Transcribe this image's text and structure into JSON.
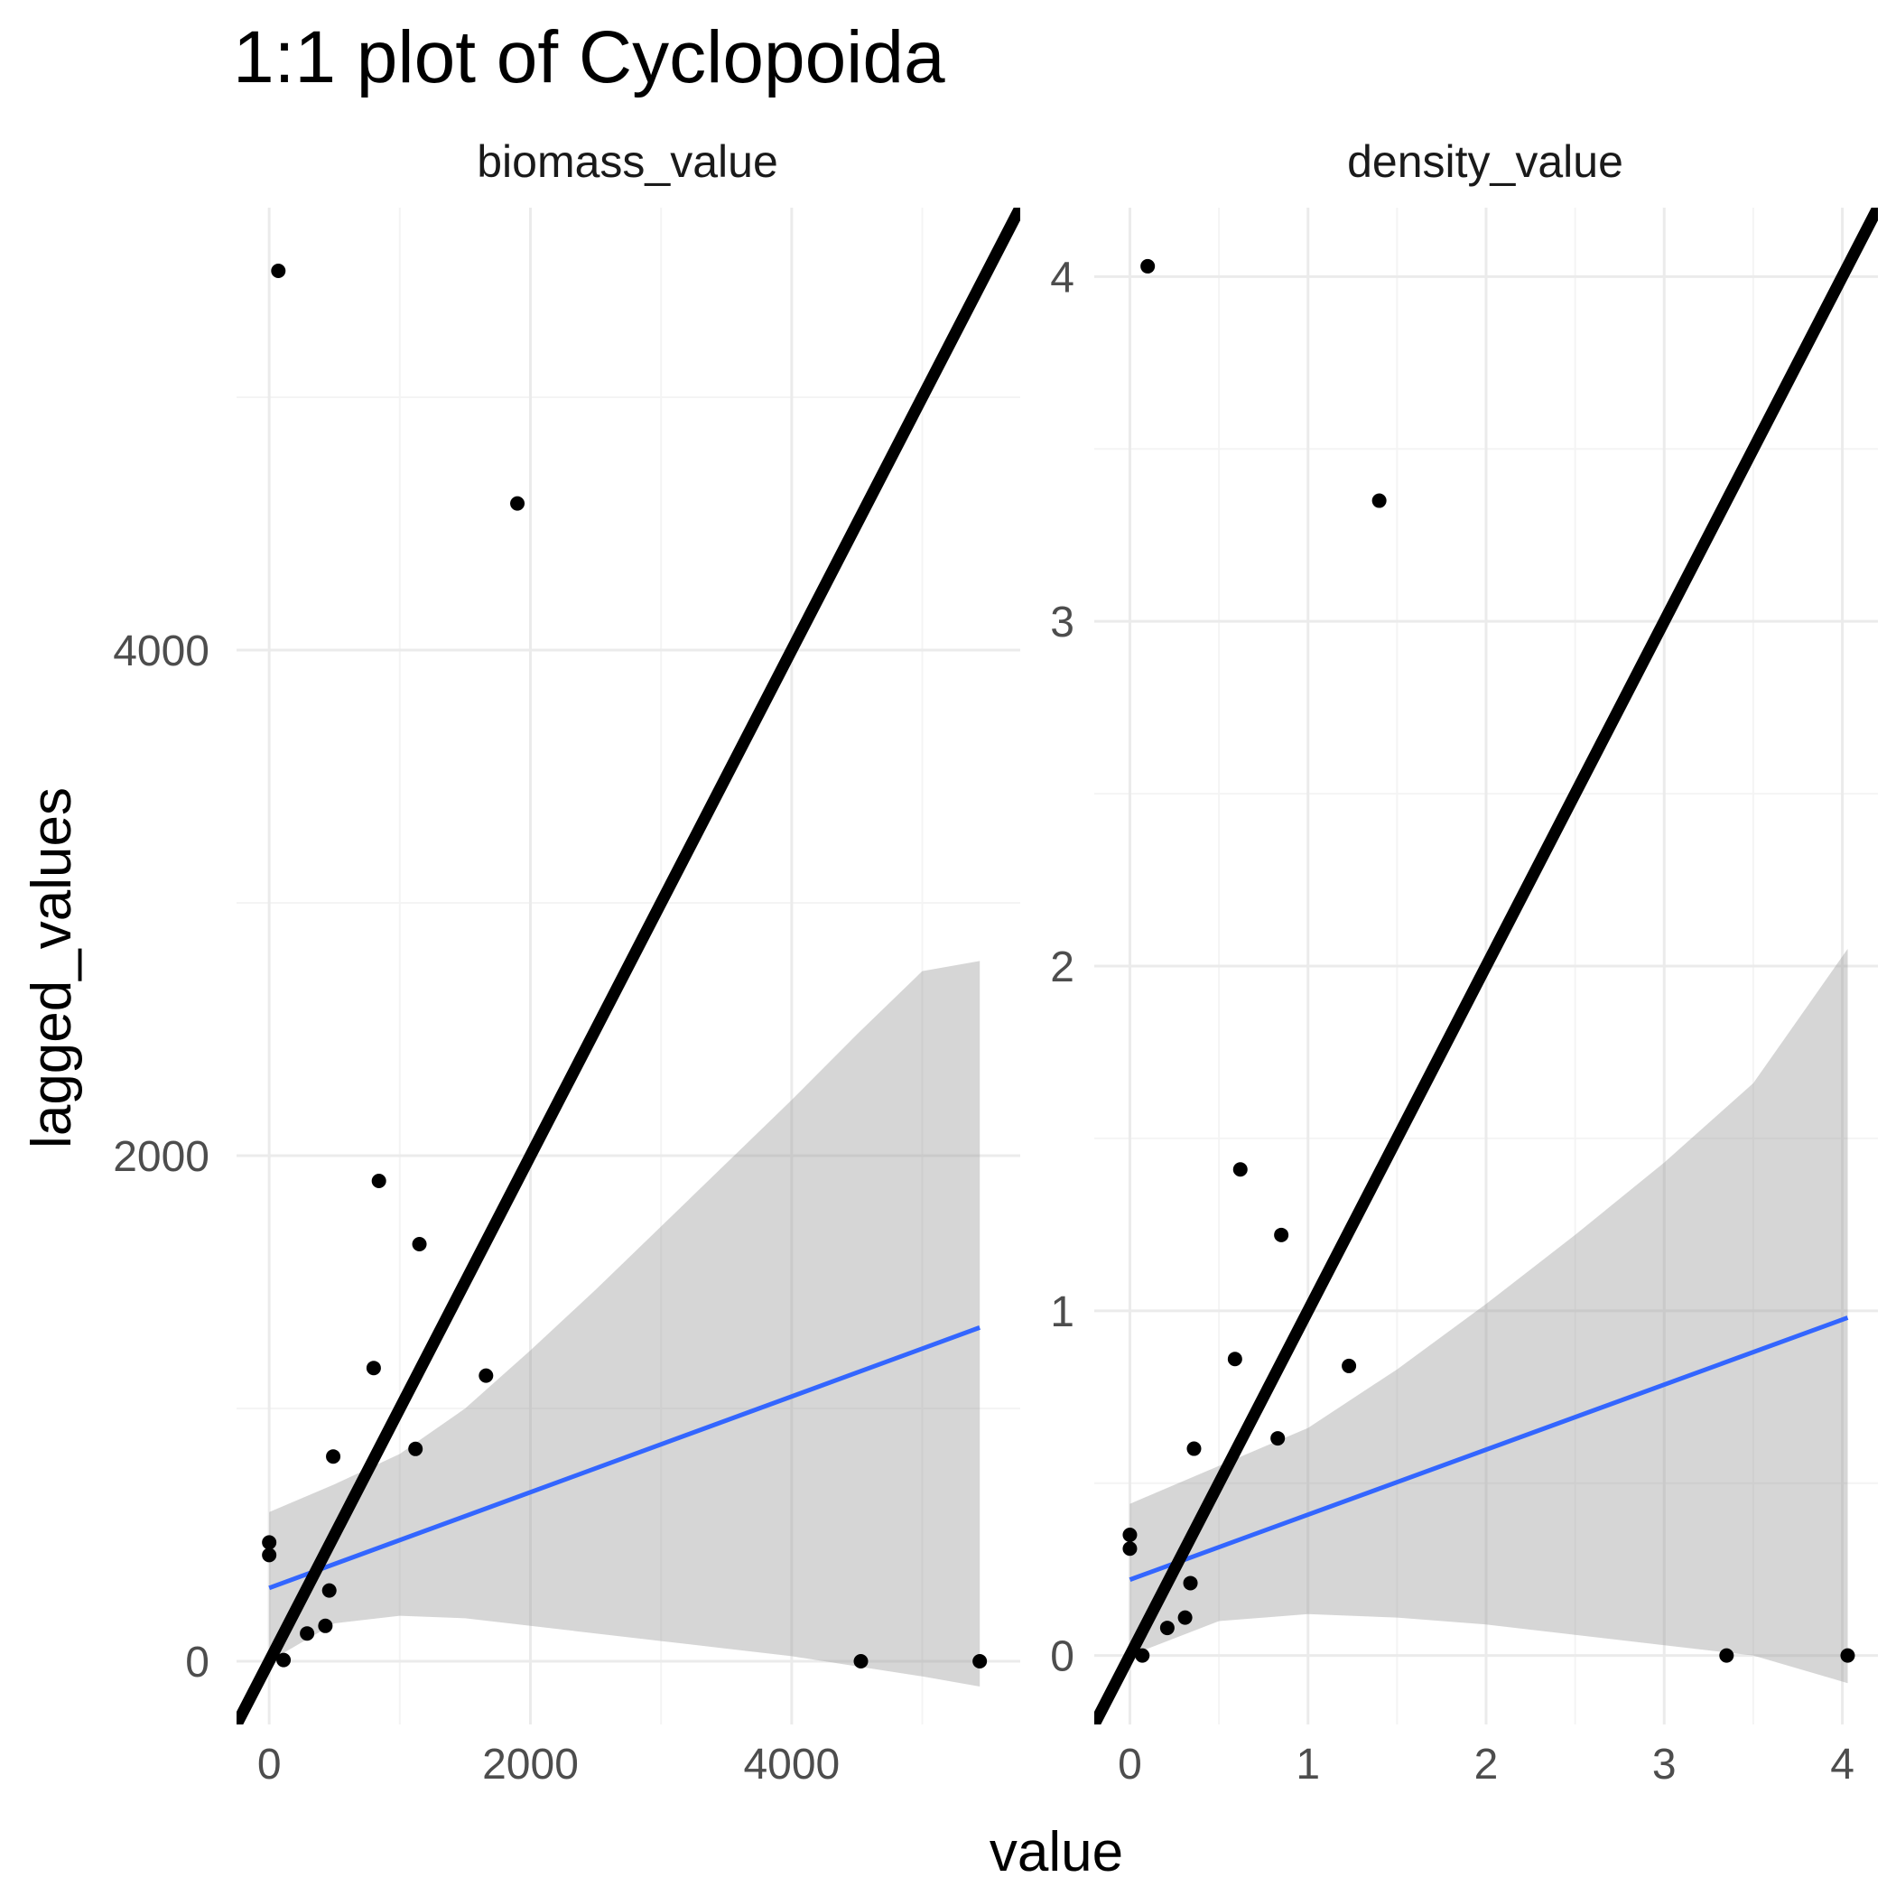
{
  "chart_data": {
    "type": "scatter",
    "title": "1:1 plot of Cyclopoida",
    "xlabel": "value",
    "ylabel": "lagged_values",
    "grid": true,
    "colors": {
      "points": "#000000",
      "identity_line": "#000000",
      "fit_line": "#3366ff",
      "ribbon": "#999999",
      "grid_major": "#ebebeb",
      "grid_minor": "#f4f4f4"
    },
    "panels": [
      {
        "strip": "biomass_value",
        "xlim": [
          -250,
          5750
        ],
        "ylim": [
          -250,
          5750
        ],
        "x_ticks": [
          0,
          2000,
          4000
        ],
        "y_ticks": [
          0,
          2000,
          4000
        ],
        "x_tick_labels": [
          "0",
          "2000",
          "4000"
        ],
        "y_tick_labels": [
          "0",
          "2000",
          "4000"
        ],
        "points": [
          {
            "x": 70,
            "y": 5500
          },
          {
            "x": 1900,
            "y": 4580
          },
          {
            "x": 840,
            "y": 1900
          },
          {
            "x": 1150,
            "y": 1650
          },
          {
            "x": 800,
            "y": 1160
          },
          {
            "x": 1660,
            "y": 1130
          },
          {
            "x": 490,
            "y": 810
          },
          {
            "x": 1120,
            "y": 840
          },
          {
            "x": 0,
            "y": 470
          },
          {
            "x": 0,
            "y": 420
          },
          {
            "x": 460,
            "y": 280
          },
          {
            "x": 430,
            "y": 140
          },
          {
            "x": 290,
            "y": 110
          },
          {
            "x": 110,
            "y": 5
          },
          {
            "x": 4530,
            "y": 0
          },
          {
            "x": 5440,
            "y": 0
          }
        ],
        "fit": {
          "x0": 0,
          "y0": 290,
          "x1": 5440,
          "y1": 1320
        },
        "ribbon": [
          {
            "x": 0,
            "upper": 590,
            "lower": 0
          },
          {
            "x": 500,
            "upper": 700,
            "lower": 150
          },
          {
            "x": 1000,
            "upper": 820,
            "lower": 180
          },
          {
            "x": 1500,
            "upper": 1000,
            "lower": 170
          },
          {
            "x": 2000,
            "upper": 1230,
            "lower": 140
          },
          {
            "x": 2500,
            "upper": 1470,
            "lower": 110
          },
          {
            "x": 3000,
            "upper": 1720,
            "lower": 80
          },
          {
            "x": 3500,
            "upper": 1970,
            "lower": 50
          },
          {
            "x": 4000,
            "upper": 2220,
            "lower": 20
          },
          {
            "x": 4500,
            "upper": 2480,
            "lower": -20
          },
          {
            "x": 5000,
            "upper": 2730,
            "lower": -60
          },
          {
            "x": 5440,
            "upper": 2770,
            "lower": -100
          }
        ]
      },
      {
        "strip": "density_value",
        "xlim": [
          -0.2,
          4.2
        ],
        "ylim": [
          -0.2,
          4.2
        ],
        "x_ticks": [
          0,
          1,
          2,
          3,
          4
        ],
        "y_ticks": [
          0,
          1,
          2,
          3,
          4
        ],
        "x_tick_labels": [
          "0",
          "1",
          "2",
          "3",
          "4"
        ],
        "y_tick_labels": [
          "0",
          "1",
          "2",
          "3",
          "4"
        ],
        "points": [
          {
            "x": 0.1,
            "y": 4.03
          },
          {
            "x": 1.4,
            "y": 3.35
          },
          {
            "x": 0.62,
            "y": 1.41
          },
          {
            "x": 0.85,
            "y": 1.22
          },
          {
            "x": 0.59,
            "y": 0.86
          },
          {
            "x": 1.23,
            "y": 0.84
          },
          {
            "x": 0.36,
            "y": 0.6
          },
          {
            "x": 0.83,
            "y": 0.63
          },
          {
            "x": 0,
            "y": 0.35
          },
          {
            "x": 0,
            "y": 0.31
          },
          {
            "x": 0.34,
            "y": 0.21
          },
          {
            "x": 0.31,
            "y": 0.11
          },
          {
            "x": 0.21,
            "y": 0.08
          },
          {
            "x": 0.07,
            "y": 0.0
          },
          {
            "x": 3.35,
            "y": 0.0
          },
          {
            "x": 4.03,
            "y": 0.0
          }
        ],
        "fit": {
          "x0": 0,
          "y0": 0.22,
          "x1": 4.03,
          "y1": 0.98
        },
        "ribbon": [
          {
            "x": 0,
            "upper": 0.44,
            "lower": 0.0
          },
          {
            "x": 0.5,
            "upper": 0.55,
            "lower": 0.1
          },
          {
            "x": 1.0,
            "upper": 0.66,
            "lower": 0.12
          },
          {
            "x": 1.5,
            "upper": 0.83,
            "lower": 0.11
          },
          {
            "x": 2.0,
            "upper": 1.02,
            "lower": 0.09
          },
          {
            "x": 2.5,
            "upper": 1.22,
            "lower": 0.06
          },
          {
            "x": 3.0,
            "upper": 1.43,
            "lower": 0.03
          },
          {
            "x": 3.5,
            "upper": 1.66,
            "lower": 0.0
          },
          {
            "x": 4.03,
            "upper": 2.05,
            "lower": -0.08
          }
        ]
      }
    ]
  }
}
